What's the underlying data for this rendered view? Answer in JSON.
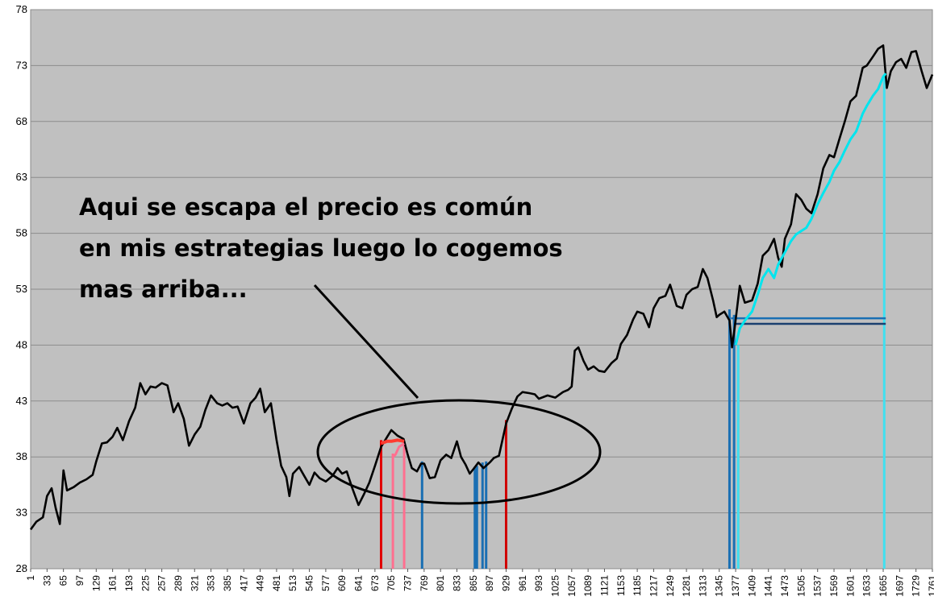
{
  "chart_data": {
    "type": "line",
    "title": "",
    "xlabel": "",
    "ylabel": "",
    "ylim": [
      28,
      78
    ],
    "xlim": [
      1,
      1761
    ],
    "grid": "horizontal",
    "legend": "none",
    "y_ticks": [
      "28",
      "33",
      "38",
      "43",
      "48",
      "53",
      "58",
      "63",
      "68",
      "73",
      "78"
    ],
    "x_ticks": [
      "1",
      "33",
      "65",
      "97",
      "129",
      "161",
      "193",
      "225",
      "257",
      "289",
      "321",
      "353",
      "385",
      "417",
      "449",
      "481",
      "513",
      "545",
      "577",
      "609",
      "641",
      "673",
      "705",
      "737",
      "769",
      "801",
      "833",
      "865",
      "897",
      "929",
      "961",
      "993",
      "1025",
      "1057",
      "1089",
      "1121",
      "1153",
      "1185",
      "1217",
      "1249",
      "1281",
      "1313",
      "1345",
      "1377",
      "1409",
      "1441",
      "1473",
      "1505",
      "1537",
      "1569",
      "1601",
      "1633",
      "1665",
      "1697",
      "1729",
      "1761"
    ],
    "series": [
      {
        "color": "#000000",
        "points": [
          [
            1,
            31.5
          ],
          [
            12,
            32.2
          ],
          [
            25,
            32.6
          ],
          [
            33,
            34.5
          ],
          [
            42,
            35.2
          ],
          [
            50,
            33.4
          ],
          [
            58,
            32.0
          ],
          [
            65,
            36.8
          ],
          [
            72,
            35.0
          ],
          [
            85,
            35.3
          ],
          [
            97,
            35.7
          ],
          [
            110,
            36.0
          ],
          [
            122,
            36.4
          ],
          [
            129,
            37.6
          ],
          [
            140,
            39.2
          ],
          [
            150,
            39.3
          ],
          [
            161,
            39.8
          ],
          [
            170,
            40.6
          ],
          [
            181,
            39.5
          ],
          [
            193,
            41.2
          ],
          [
            205,
            42.4
          ],
          [
            215,
            44.6
          ],
          [
            225,
            43.6
          ],
          [
            235,
            44.3
          ],
          [
            245,
            44.2
          ],
          [
            257,
            44.6
          ],
          [
            268,
            44.4
          ],
          [
            280,
            42.0
          ],
          [
            289,
            42.8
          ],
          [
            300,
            41.4
          ],
          [
            310,
            39.0
          ],
          [
            321,
            40.0
          ],
          [
            332,
            40.7
          ],
          [
            342,
            42.2
          ],
          [
            353,
            43.5
          ],
          [
            365,
            42.8
          ],
          [
            375,
            42.6
          ],
          [
            385,
            42.8
          ],
          [
            395,
            42.4
          ],
          [
            405,
            42.5
          ],
          [
            417,
            41.0
          ],
          [
            430,
            42.8
          ],
          [
            440,
            43.3
          ],
          [
            449,
            44.1
          ],
          [
            458,
            42.0
          ],
          [
            470,
            42.8
          ],
          [
            481,
            39.5
          ],
          [
            490,
            37.2
          ],
          [
            500,
            36.2
          ],
          [
            506,
            34.5
          ],
          [
            513,
            36.5
          ],
          [
            525,
            37.1
          ],
          [
            535,
            36.3
          ],
          [
            545,
            35.5
          ],
          [
            555,
            36.6
          ],
          [
            565,
            36.1
          ],
          [
            577,
            35.8
          ],
          [
            590,
            36.3
          ],
          [
            600,
            37.0
          ],
          [
            609,
            36.5
          ],
          [
            618,
            36.7
          ],
          [
            628,
            35.3
          ],
          [
            641,
            33.7
          ],
          [
            652,
            34.7
          ],
          [
            662,
            35.7
          ],
          [
            673,
            37.2
          ],
          [
            685,
            38.9
          ],
          [
            697,
            39.8
          ],
          [
            705,
            40.4
          ],
          [
            717,
            39.9
          ],
          [
            729,
            39.6
          ],
          [
            737,
            38.2
          ],
          [
            745,
            37.0
          ],
          [
            755,
            36.7
          ],
          [
            763,
            37.4
          ],
          [
            769,
            37.4
          ],
          [
            780,
            36.1
          ],
          [
            790,
            36.2
          ],
          [
            801,
            37.7
          ],
          [
            812,
            38.2
          ],
          [
            822,
            37.9
          ],
          [
            833,
            39.4
          ],
          [
            841,
            38.0
          ],
          [
            850,
            37.3
          ],
          [
            858,
            36.5
          ],
          [
            865,
            36.9
          ],
          [
            875,
            37.5
          ],
          [
            885,
            37.0
          ],
          [
            897,
            37.5
          ],
          [
            905,
            37.9
          ],
          [
            915,
            38.1
          ],
          [
            929,
            41.0
          ],
          [
            940,
            42.3
          ],
          [
            951,
            43.4
          ],
          [
            961,
            43.8
          ],
          [
            975,
            43.7
          ],
          [
            985,
            43.6
          ],
          [
            993,
            43.2
          ],
          [
            1010,
            43.5
          ],
          [
            1025,
            43.3
          ],
          [
            1040,
            43.8
          ],
          [
            1050,
            44.0
          ],
          [
            1057,
            44.3
          ],
          [
            1063,
            47.5
          ],
          [
            1070,
            47.8
          ],
          [
            1080,
            46.6
          ],
          [
            1089,
            45.8
          ],
          [
            1100,
            46.1
          ],
          [
            1110,
            45.7
          ],
          [
            1121,
            45.6
          ],
          [
            1135,
            46.4
          ],
          [
            1145,
            46.8
          ],
          [
            1153,
            48.1
          ],
          [
            1165,
            48.9
          ],
          [
            1177,
            50.3
          ],
          [
            1185,
            51.0
          ],
          [
            1197,
            50.8
          ],
          [
            1208,
            49.6
          ],
          [
            1217,
            51.3
          ],
          [
            1228,
            52.2
          ],
          [
            1240,
            52.4
          ],
          [
            1249,
            53.4
          ],
          [
            1262,
            51.5
          ],
          [
            1273,
            51.3
          ],
          [
            1281,
            52.5
          ],
          [
            1292,
            53.0
          ],
          [
            1303,
            53.2
          ],
          [
            1313,
            54.8
          ],
          [
            1322,
            54.0
          ],
          [
            1333,
            52.0
          ],
          [
            1340,
            50.5
          ],
          [
            1345,
            50.7
          ],
          [
            1355,
            51.0
          ],
          [
            1365,
            50.2
          ],
          [
            1370,
            47.8
          ],
          [
            1375,
            49.5
          ],
          [
            1385,
            53.3
          ],
          [
            1395,
            51.8
          ],
          [
            1409,
            52.0
          ],
          [
            1420,
            53.5
          ],
          [
            1430,
            56.0
          ],
          [
            1441,
            56.5
          ],
          [
            1452,
            57.5
          ],
          [
            1460,
            55.8
          ],
          [
            1467,
            55.0
          ],
          [
            1473,
            57.5
          ],
          [
            1485,
            58.8
          ],
          [
            1495,
            61.5
          ],
          [
            1505,
            61.0
          ],
          [
            1515,
            60.2
          ],
          [
            1525,
            59.8
          ],
          [
            1537,
            61.5
          ],
          [
            1548,
            63.8
          ],
          [
            1560,
            65.0
          ],
          [
            1569,
            64.8
          ],
          [
            1580,
            66.5
          ],
          [
            1590,
            68.0
          ],
          [
            1601,
            69.8
          ],
          [
            1612,
            70.3
          ],
          [
            1625,
            72.8
          ],
          [
            1633,
            73.0
          ],
          [
            1645,
            73.8
          ],
          [
            1655,
            74.5
          ],
          [
            1665,
            74.8
          ],
          [
            1672,
            71.0
          ],
          [
            1680,
            72.5
          ],
          [
            1690,
            73.3
          ],
          [
            1700,
            73.6
          ],
          [
            1710,
            72.8
          ],
          [
            1720,
            74.2
          ],
          [
            1729,
            74.3
          ],
          [
            1740,
            72.5
          ],
          [
            1750,
            71.0
          ],
          [
            1761,
            72.2
          ]
        ]
      },
      {
        "color": "#00e5ee",
        "points": [
          [
            1377,
            48.0
          ],
          [
            1385,
            49.5
          ],
          [
            1395,
            50.2
          ],
          [
            1409,
            51.0
          ],
          [
            1420,
            52.5
          ],
          [
            1430,
            54.0
          ],
          [
            1441,
            54.8
          ],
          [
            1452,
            54.0
          ],
          [
            1460,
            55.2
          ],
          [
            1473,
            56.3
          ],
          [
            1485,
            57.3
          ],
          [
            1495,
            57.9
          ],
          [
            1505,
            58.2
          ],
          [
            1515,
            58.5
          ],
          [
            1525,
            59.3
          ],
          [
            1537,
            60.6
          ],
          [
            1548,
            61.6
          ],
          [
            1560,
            62.6
          ],
          [
            1569,
            63.6
          ],
          [
            1580,
            64.4
          ],
          [
            1590,
            65.4
          ],
          [
            1601,
            66.4
          ],
          [
            1612,
            67.1
          ],
          [
            1625,
            68.7
          ],
          [
            1633,
            69.4
          ],
          [
            1645,
            70.3
          ],
          [
            1655,
            70.9
          ],
          [
            1665,
            72.0
          ],
          [
            1670,
            72.3
          ]
        ]
      },
      {
        "color": "#ff3b30",
        "points": [
          [
            685,
            39.2
          ],
          [
            697,
            39.4
          ],
          [
            705,
            39.4
          ],
          [
            717,
            39.5
          ],
          [
            730,
            39.4
          ]
        ]
      },
      {
        "color": "#ff7090",
        "points": [
          [
            708,
            38.0
          ],
          [
            713,
            38.2
          ],
          [
            720,
            38.9
          ],
          [
            730,
            39.2
          ]
        ]
      }
    ],
    "vertical_markers": [
      {
        "x": 685,
        "top": 39.5,
        "color": "#e00000"
      },
      {
        "x": 708,
        "top": 38.3,
        "color": "#ff6f8f"
      },
      {
        "x": 730,
        "top": 39.2,
        "color": "#ff6f8f"
      },
      {
        "x": 765,
        "top": 37.6,
        "color": "#1a6fb3"
      },
      {
        "x": 868,
        "top": 37.0,
        "color": "#1a6fb3"
      },
      {
        "x": 872,
        "top": 37.2,
        "color": "#1a6fb3"
      },
      {
        "x": 883,
        "top": 37.5,
        "color": "#1a6fb3"
      },
      {
        "x": 890,
        "top": 37.6,
        "color": "#1a6fb3"
      },
      {
        "x": 929,
        "top": 41.3,
        "color": "#d00000"
      },
      {
        "x": 1365,
        "top": 51.2,
        "color": "#1a6fb3"
      },
      {
        "x": 1374,
        "top": 50.7,
        "color": "#1a6fb3"
      },
      {
        "x": 1382,
        "top": 48.0,
        "color": "#40e0f0"
      },
      {
        "x": 1667,
        "top": 72.1,
        "color": "#40e0f0"
      }
    ],
    "horizontal_markers": [
      {
        "x_start": 1368,
        "x_end": 1670,
        "y": 50.4,
        "color": "#1a6fb3"
      },
      {
        "x_start": 1374,
        "x_end": 1670,
        "y": 49.9,
        "color": "#1a3f6f"
      }
    ],
    "annotations": [
      {
        "text_lines": [
          "Aqui se escapa el precio es común",
          "en mis estrategias luego lo cogemos",
          "mas arriba..."
        ]
      }
    ]
  }
}
